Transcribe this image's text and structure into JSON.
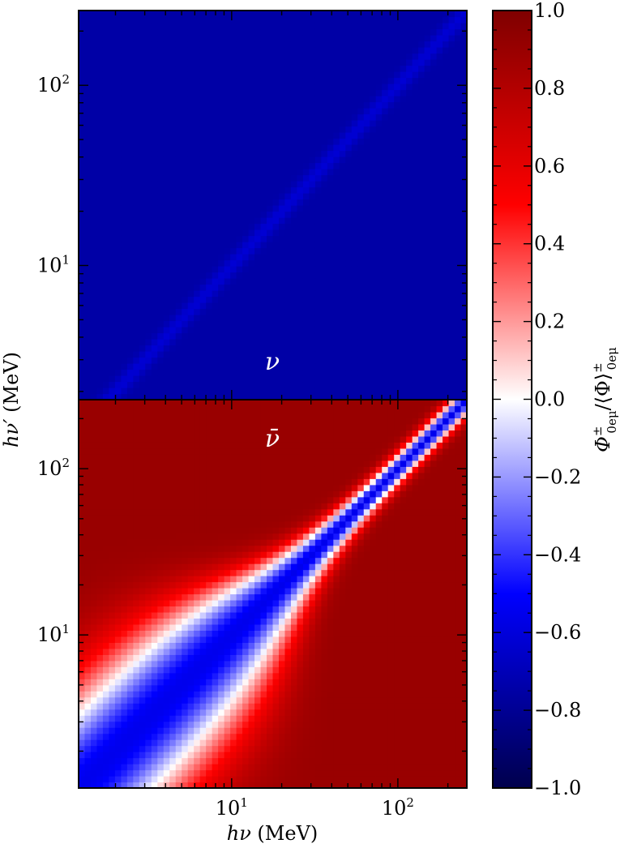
{
  "chart_data": [
    {
      "type": "heatmap",
      "panel": "top",
      "annotation": "ν",
      "x_range_mev": [
        1.2,
        260
      ],
      "y_range_mev": [
        1.8,
        260
      ],
      "x_scale": "log",
      "y_scale": "log",
      "y_ticks": [
        {
          "value": 10,
          "base": "10",
          "exp": "1"
        },
        {
          "value": 100,
          "base": "10",
          "exp": "2"
        }
      ],
      "value_description": "nearly uniform at about -0.75 with a faint lighter diagonal band along hν = hν′",
      "background_value": -0.75,
      "diagonal_value": -0.62
    },
    {
      "type": "heatmap",
      "panel": "bottom",
      "annotation": "ν̄",
      "x_range_mev": [
        1.2,
        260
      ],
      "y_range_mev": [
        1.2,
        260
      ],
      "x_scale": "log",
      "y_scale": "log",
      "y_ticks": [
        {
          "value": 10,
          "base": "10",
          "exp": "1"
        },
        {
          "value": 100,
          "base": "10",
          "exp": "2"
        }
      ],
      "value_description": "+0.9 away from the diagonal, about -0.55 along hν = hν′, white (0) contours near hν ≈ 10 MeV and hν′ ≈ 10 MeV",
      "max_value": 0.9,
      "diagonal_value": -0.55
    }
  ],
  "axes": {
    "xlabel_symbol": "hν",
    "xlabel_unit": "(MeV)",
    "ylabel_symbol": "hν′",
    "ylabel_unit": "(MeV)",
    "x_ticks": [
      {
        "value": 10,
        "base": "10",
        "exp": "1"
      },
      {
        "value": 100,
        "base": "10",
        "exp": "2"
      }
    ]
  },
  "colorbar": {
    "label_prefix": "Φ",
    "label_sup1": "±",
    "label_sub1": "0eμ",
    "label_mid": "/⟨Φ⟩",
    "label_sup2": "±",
    "label_sub2": "0eμ",
    "range": [
      -1.0,
      1.0
    ],
    "ticks": [
      "1.0",
      "0.8",
      "0.6",
      "0.4",
      "0.2",
      "0.0",
      "−0.2",
      "−0.4",
      "−0.6",
      "−0.8",
      "−1.0"
    ],
    "colormap": [
      "#00004c",
      "#0000ff",
      "#ffffff",
      "#ff0000",
      "#7f0000"
    ]
  }
}
